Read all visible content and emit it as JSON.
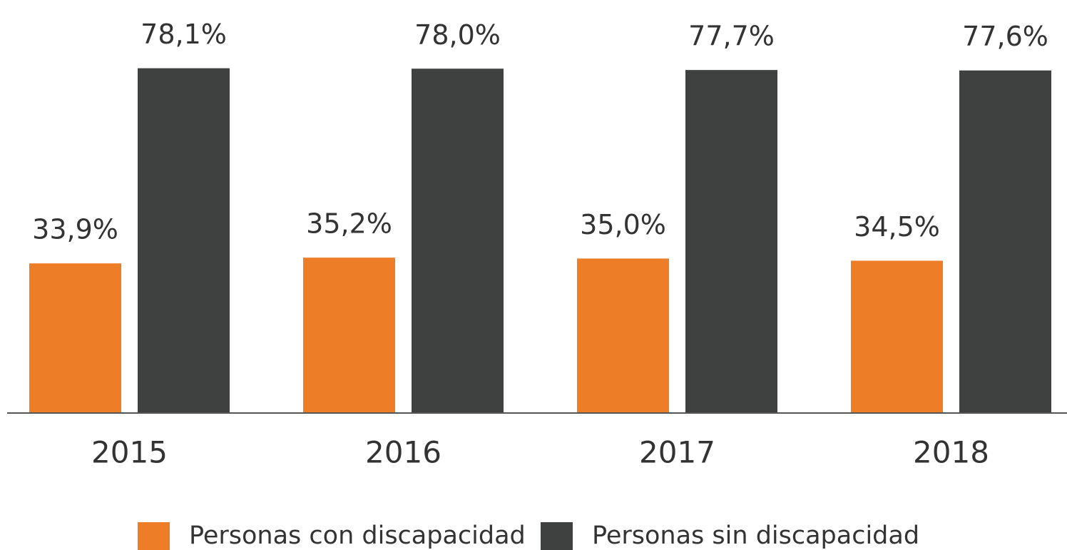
{
  "chart_data": {
    "type": "bar",
    "categories": [
      "2015",
      "2016",
      "2017",
      "2018"
    ],
    "series": [
      {
        "name": "Personas con discapacidad",
        "color": "#ee7d28",
        "values": [
          33.9,
          35.2,
          35.0,
          34.5
        ],
        "value_labels": [
          "33,9%",
          "35,2%",
          "35,0%",
          "34,5%"
        ]
      },
      {
        "name": "Personas sin discapacidad",
        "color": "#3f4040",
        "values": [
          78.1,
          78.0,
          77.7,
          77.6
        ],
        "value_labels": [
          "78,1%",
          "78,0%",
          "77,7%",
          "77,6%"
        ]
      }
    ],
    "ylim": [
      0,
      90
    ],
    "legend": "bottom"
  }
}
